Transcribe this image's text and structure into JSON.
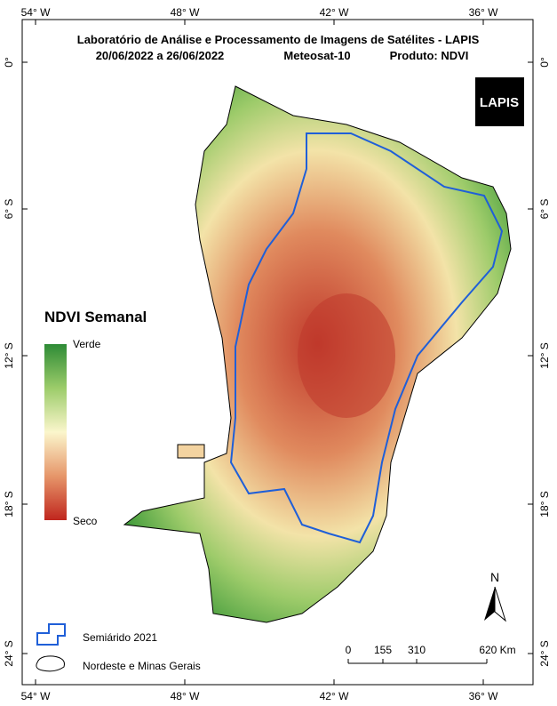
{
  "header": {
    "title": "Laboratório de Análise e Processamento de Imagens de Satélites - LAPIS",
    "dates": "20/06/2022  a  26/06/2022",
    "satellite": "Meteosat-10",
    "product": "Produto: NDVI"
  },
  "axes": {
    "top": [
      "54° W",
      "48° W",
      "42° W",
      "36° W"
    ],
    "bottom": [
      "54° W",
      "48° W",
      "42° W",
      "36° W"
    ],
    "left": [
      "0°",
      "6° S",
      "12° S",
      "18° S",
      "24° S"
    ],
    "right": [
      "0°",
      "6° S",
      "12° S",
      "18° S",
      "24° S"
    ]
  },
  "legend": {
    "title": "NDVI Semanal",
    "high": "Verde",
    "low": "Seco"
  },
  "logo": "LAPIS",
  "north": "N",
  "key": [
    "Semiárido 2021",
    "Nordeste e Minas Gerais"
  ],
  "scale": {
    "labels": [
      "0",
      "155",
      "310",
      "620 Km"
    ]
  }
}
